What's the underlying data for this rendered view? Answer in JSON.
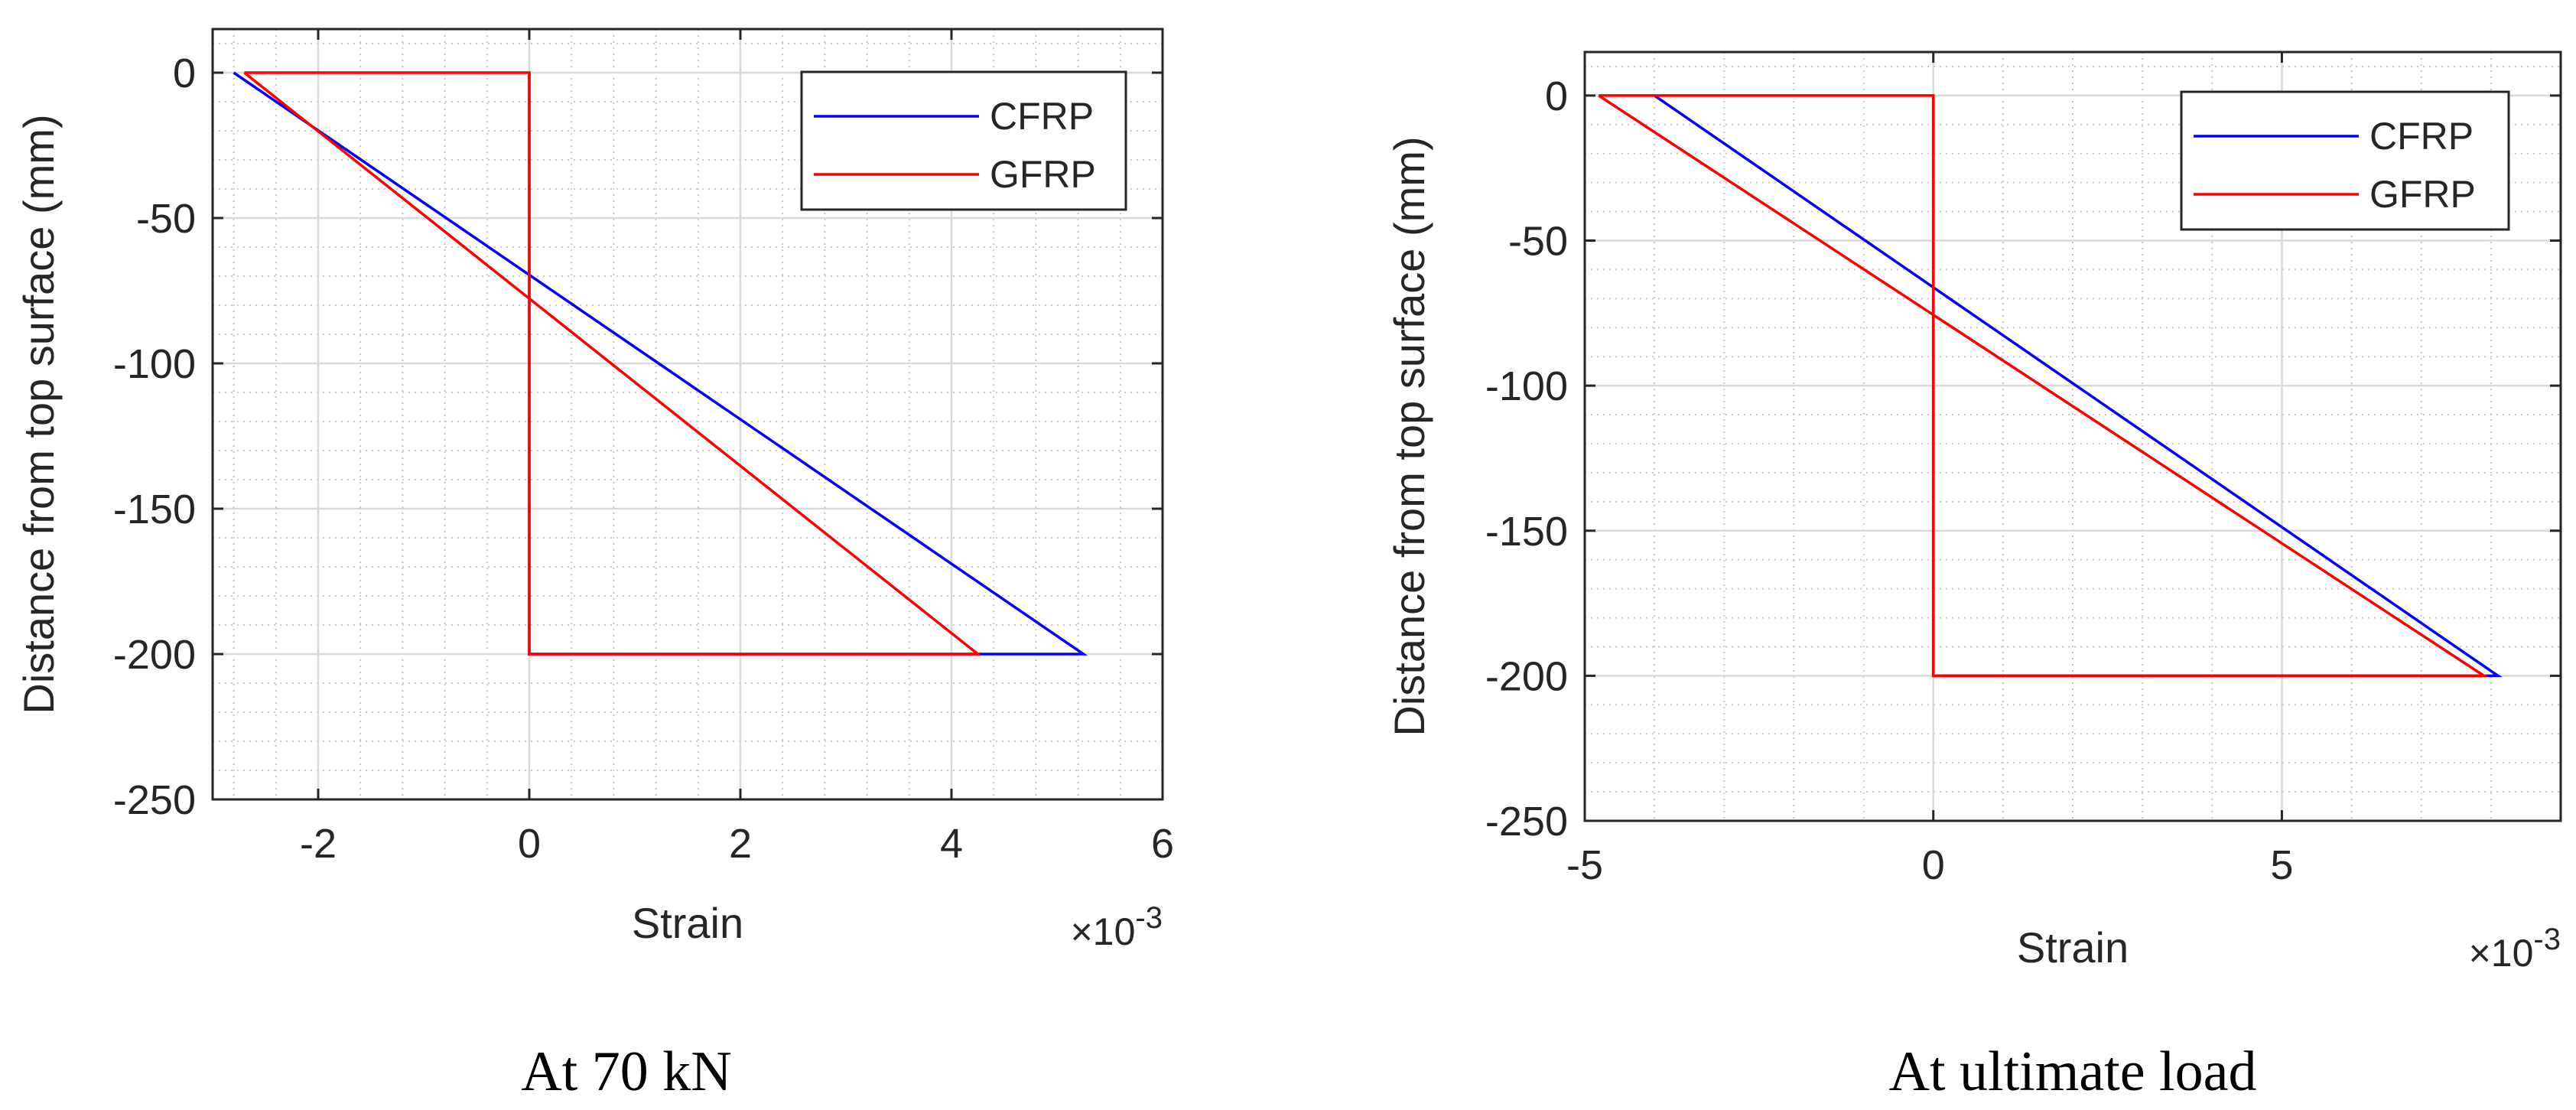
{
  "chart_data": [
    {
      "type": "line",
      "title": "",
      "caption": "At 70 kN",
      "xlabel": "Strain",
      "ylabel": "Distance from top surface (mm)",
      "x_multiplier": "×10",
      "x_multiplier_exp": "-3",
      "xlim": [
        -3,
        6
      ],
      "ylim": [
        -250,
        15
      ],
      "xticks": [
        -2,
        0,
        2,
        4,
        6
      ],
      "yticks": [
        0,
        -50,
        -100,
        -150,
        -200,
        -250
      ],
      "xtick_labels": [
        "-2",
        "0",
        "2",
        "4",
        "6"
      ],
      "ytick_labels": [
        "0",
        "-50",
        "-100",
        "-150",
        "-200",
        "-250"
      ],
      "grid": true,
      "legend_position": "top-right",
      "series": [
        {
          "name": "CFRP",
          "color": "#0000ff",
          "x": [
            -2.8,
            5.25,
            0,
            0
          ],
          "y": [
            0,
            -200,
            -200,
            0
          ]
        },
        {
          "name": "GFRP",
          "color": "#ff0000",
          "x": [
            -2.7,
            4.25,
            0,
            0,
            -2.7
          ],
          "y": [
            0,
            -200,
            -200,
            0,
            0
          ]
        }
      ]
    },
    {
      "type": "line",
      "title": "",
      "caption": "At ultimate load",
      "xlabel": "Strain",
      "ylabel": "Distance from top surface (mm)",
      "x_multiplier": "×10",
      "x_multiplier_exp": "-3",
      "xlim": [
        -5,
        9
      ],
      "ylim": [
        -250,
        15
      ],
      "xticks": [
        -5,
        0,
        5
      ],
      "yticks": [
        0,
        -50,
        -100,
        -150,
        -200,
        -250
      ],
      "xtick_labels": [
        "-5",
        "0",
        "5"
      ],
      "ytick_labels": [
        "0",
        "-50",
        "-100",
        "-150",
        "-200",
        "-250"
      ],
      "grid": true,
      "legend_position": "top-right",
      "series": [
        {
          "name": "CFRP",
          "color": "#0000ff",
          "x": [
            -4.0,
            8.1,
            0,
            0
          ],
          "y": [
            0,
            -200,
            -200,
            0
          ]
        },
        {
          "name": "GFRP",
          "color": "#ff0000",
          "x": [
            -4.8,
            7.9,
            0,
            0,
            -4.8
          ],
          "y": [
            0,
            -200,
            -200,
            0,
            0
          ]
        }
      ]
    }
  ]
}
